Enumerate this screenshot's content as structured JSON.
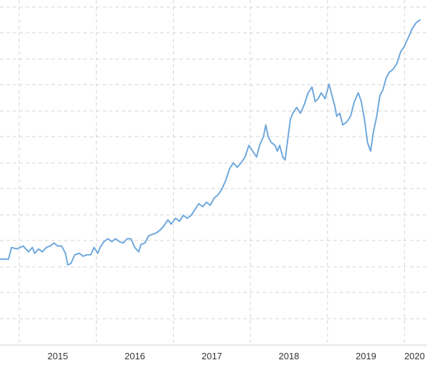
{
  "chart_data": {
    "type": "line",
    "title": "",
    "xlabel": "",
    "ylabel": "",
    "x_tick_labels": [
      "2015",
      "2016",
      "2017",
      "2018",
      "2019",
      "2020"
    ],
    "x_range": [
      2014.75,
      2020.2
    ],
    "y_range": [
      0,
      100
    ],
    "grid": true,
    "legend": "none",
    "line_color": "#6fa8dc",
    "series": [
      {
        "points": [
          [
            2014.75,
            18
          ],
          [
            2014.86,
            18
          ],
          [
            2014.9,
            22
          ],
          [
            2014.97,
            21.5
          ],
          [
            2015.05,
            22.5
          ],
          [
            2015.12,
            20.5
          ],
          [
            2015.17,
            22
          ],
          [
            2015.2,
            20
          ],
          [
            2015.25,
            21.5
          ],
          [
            2015.3,
            20.5
          ],
          [
            2015.35,
            22
          ],
          [
            2015.4,
            22.5
          ],
          [
            2015.45,
            23.5
          ],
          [
            2015.5,
            22.5
          ],
          [
            2015.55,
            22.5
          ],
          [
            2015.6,
            20
          ],
          [
            2015.63,
            16
          ],
          [
            2015.67,
            16.5
          ],
          [
            2015.72,
            19.5
          ],
          [
            2015.78,
            20
          ],
          [
            2015.83,
            19
          ],
          [
            2015.88,
            19.5
          ],
          [
            2015.93,
            19.5
          ],
          [
            2015.97,
            22
          ],
          [
            2016.02,
            20
          ],
          [
            2016.05,
            22
          ],
          [
            2016.1,
            24
          ],
          [
            2016.15,
            25
          ],
          [
            2016.2,
            24
          ],
          [
            2016.25,
            25
          ],
          [
            2016.3,
            24
          ],
          [
            2016.35,
            23.5
          ],
          [
            2016.4,
            25
          ],
          [
            2016.45,
            25
          ],
          [
            2016.5,
            22
          ],
          [
            2016.55,
            20.5
          ],
          [
            2016.58,
            23
          ],
          [
            2016.63,
            23.5
          ],
          [
            2016.68,
            26
          ],
          [
            2016.73,
            26.5
          ],
          [
            2016.78,
            27
          ],
          [
            2016.83,
            28
          ],
          [
            2016.88,
            29.5
          ],
          [
            2016.93,
            31.5
          ],
          [
            2016.97,
            30
          ],
          [
            2017.03,
            32
          ],
          [
            2017.08,
            31
          ],
          [
            2017.13,
            33
          ],
          [
            2017.18,
            32
          ],
          [
            2017.23,
            33
          ],
          [
            2017.28,
            35
          ],
          [
            2017.33,
            37
          ],
          [
            2017.38,
            36
          ],
          [
            2017.43,
            37.5
          ],
          [
            2017.48,
            36.5
          ],
          [
            2017.53,
            39
          ],
          [
            2017.58,
            40
          ],
          [
            2017.63,
            42
          ],
          [
            2017.68,
            45
          ],
          [
            2017.73,
            49
          ],
          [
            2017.78,
            51
          ],
          [
            2017.83,
            49.5
          ],
          [
            2017.88,
            51
          ],
          [
            2017.93,
            53
          ],
          [
            2017.98,
            57
          ],
          [
            2018.03,
            55
          ],
          [
            2018.08,
            53
          ],
          [
            2018.12,
            57
          ],
          [
            2018.17,
            60
          ],
          [
            2018.2,
            64
          ],
          [
            2018.23,
            60
          ],
          [
            2018.27,
            58
          ],
          [
            2018.32,
            57
          ],
          [
            2018.35,
            55
          ],
          [
            2018.38,
            57
          ],
          [
            2018.42,
            53
          ],
          [
            2018.45,
            52
          ],
          [
            2018.48,
            58
          ],
          [
            2018.52,
            66
          ],
          [
            2018.55,
            68
          ],
          [
            2018.6,
            70
          ],
          [
            2018.65,
            68
          ],
          [
            2018.7,
            71
          ],
          [
            2018.75,
            75
          ],
          [
            2018.8,
            77
          ],
          [
            2018.84,
            72
          ],
          [
            2018.88,
            73
          ],
          [
            2018.92,
            75
          ],
          [
            2018.97,
            73
          ],
          [
            2019.02,
            78
          ],
          [
            2019.06,
            74
          ],
          [
            2019.1,
            70
          ],
          [
            2019.12,
            67
          ],
          [
            2019.16,
            68
          ],
          [
            2019.2,
            64
          ],
          [
            2019.25,
            65
          ],
          [
            2019.3,
            67
          ],
          [
            2019.35,
            72
          ],
          [
            2019.4,
            75
          ],
          [
            2019.44,
            72
          ],
          [
            2019.48,
            66
          ],
          [
            2019.52,
            58
          ],
          [
            2019.56,
            55
          ],
          [
            2019.6,
            62
          ],
          [
            2019.64,
            67
          ],
          [
            2019.68,
            74
          ],
          [
            2019.72,
            76
          ],
          [
            2019.76,
            80
          ],
          [
            2019.8,
            82
          ],
          [
            2019.85,
            83
          ],
          [
            2019.9,
            85
          ],
          [
            2019.95,
            89
          ],
          [
            2020.0,
            91
          ],
          [
            2020.05,
            94
          ],
          [
            2020.1,
            97
          ],
          [
            2020.15,
            99
          ],
          [
            2020.2,
            100
          ]
        ]
      }
    ]
  }
}
